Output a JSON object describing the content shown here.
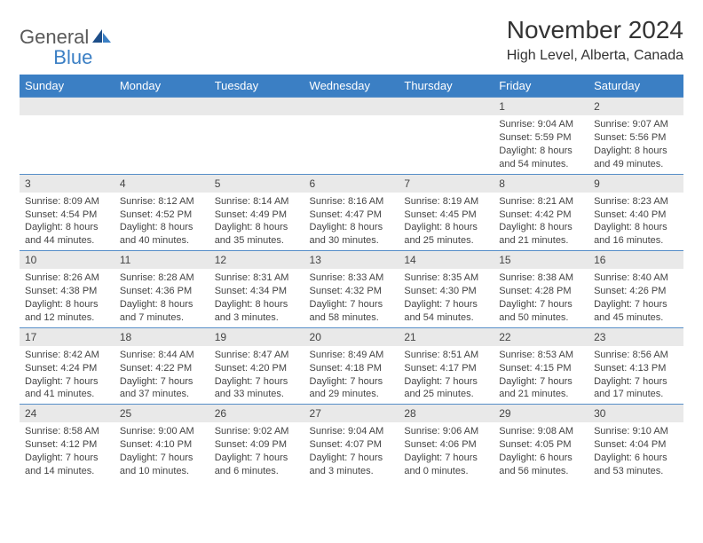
{
  "logo": {
    "word1": "General",
    "word2": "Blue"
  },
  "title": "November 2024",
  "location": "High Level, Alberta, Canada",
  "weekdays": [
    "Sunday",
    "Monday",
    "Tuesday",
    "Wednesday",
    "Thursday",
    "Friday",
    "Saturday"
  ],
  "colors": {
    "header_bg": "#3b7fc4",
    "header_text": "#ffffff",
    "daynum_bg": "#e9e9e9",
    "row_border": "#568ec8",
    "text": "#444444"
  },
  "grid": [
    [
      {
        "day": "",
        "sunrise": "",
        "sunset": "",
        "daylight1": "",
        "daylight2": ""
      },
      {
        "day": "",
        "sunrise": "",
        "sunset": "",
        "daylight1": "",
        "daylight2": ""
      },
      {
        "day": "",
        "sunrise": "",
        "sunset": "",
        "daylight1": "",
        "daylight2": ""
      },
      {
        "day": "",
        "sunrise": "",
        "sunset": "",
        "daylight1": "",
        "daylight2": ""
      },
      {
        "day": "",
        "sunrise": "",
        "sunset": "",
        "daylight1": "",
        "daylight2": ""
      },
      {
        "day": "1",
        "sunrise": "Sunrise: 9:04 AM",
        "sunset": "Sunset: 5:59 PM",
        "daylight1": "Daylight: 8 hours",
        "daylight2": "and 54 minutes."
      },
      {
        "day": "2",
        "sunrise": "Sunrise: 9:07 AM",
        "sunset": "Sunset: 5:56 PM",
        "daylight1": "Daylight: 8 hours",
        "daylight2": "and 49 minutes."
      }
    ],
    [
      {
        "day": "3",
        "sunrise": "Sunrise: 8:09 AM",
        "sunset": "Sunset: 4:54 PM",
        "daylight1": "Daylight: 8 hours",
        "daylight2": "and 44 minutes."
      },
      {
        "day": "4",
        "sunrise": "Sunrise: 8:12 AM",
        "sunset": "Sunset: 4:52 PM",
        "daylight1": "Daylight: 8 hours",
        "daylight2": "and 40 minutes."
      },
      {
        "day": "5",
        "sunrise": "Sunrise: 8:14 AM",
        "sunset": "Sunset: 4:49 PM",
        "daylight1": "Daylight: 8 hours",
        "daylight2": "and 35 minutes."
      },
      {
        "day": "6",
        "sunrise": "Sunrise: 8:16 AM",
        "sunset": "Sunset: 4:47 PM",
        "daylight1": "Daylight: 8 hours",
        "daylight2": "and 30 minutes."
      },
      {
        "day": "7",
        "sunrise": "Sunrise: 8:19 AM",
        "sunset": "Sunset: 4:45 PM",
        "daylight1": "Daylight: 8 hours",
        "daylight2": "and 25 minutes."
      },
      {
        "day": "8",
        "sunrise": "Sunrise: 8:21 AM",
        "sunset": "Sunset: 4:42 PM",
        "daylight1": "Daylight: 8 hours",
        "daylight2": "and 21 minutes."
      },
      {
        "day": "9",
        "sunrise": "Sunrise: 8:23 AM",
        "sunset": "Sunset: 4:40 PM",
        "daylight1": "Daylight: 8 hours",
        "daylight2": "and 16 minutes."
      }
    ],
    [
      {
        "day": "10",
        "sunrise": "Sunrise: 8:26 AM",
        "sunset": "Sunset: 4:38 PM",
        "daylight1": "Daylight: 8 hours",
        "daylight2": "and 12 minutes."
      },
      {
        "day": "11",
        "sunrise": "Sunrise: 8:28 AM",
        "sunset": "Sunset: 4:36 PM",
        "daylight1": "Daylight: 8 hours",
        "daylight2": "and 7 minutes."
      },
      {
        "day": "12",
        "sunrise": "Sunrise: 8:31 AM",
        "sunset": "Sunset: 4:34 PM",
        "daylight1": "Daylight: 8 hours",
        "daylight2": "and 3 minutes."
      },
      {
        "day": "13",
        "sunrise": "Sunrise: 8:33 AM",
        "sunset": "Sunset: 4:32 PM",
        "daylight1": "Daylight: 7 hours",
        "daylight2": "and 58 minutes."
      },
      {
        "day": "14",
        "sunrise": "Sunrise: 8:35 AM",
        "sunset": "Sunset: 4:30 PM",
        "daylight1": "Daylight: 7 hours",
        "daylight2": "and 54 minutes."
      },
      {
        "day": "15",
        "sunrise": "Sunrise: 8:38 AM",
        "sunset": "Sunset: 4:28 PM",
        "daylight1": "Daylight: 7 hours",
        "daylight2": "and 50 minutes."
      },
      {
        "day": "16",
        "sunrise": "Sunrise: 8:40 AM",
        "sunset": "Sunset: 4:26 PM",
        "daylight1": "Daylight: 7 hours",
        "daylight2": "and 45 minutes."
      }
    ],
    [
      {
        "day": "17",
        "sunrise": "Sunrise: 8:42 AM",
        "sunset": "Sunset: 4:24 PM",
        "daylight1": "Daylight: 7 hours",
        "daylight2": "and 41 minutes."
      },
      {
        "day": "18",
        "sunrise": "Sunrise: 8:44 AM",
        "sunset": "Sunset: 4:22 PM",
        "daylight1": "Daylight: 7 hours",
        "daylight2": "and 37 minutes."
      },
      {
        "day": "19",
        "sunrise": "Sunrise: 8:47 AM",
        "sunset": "Sunset: 4:20 PM",
        "daylight1": "Daylight: 7 hours",
        "daylight2": "and 33 minutes."
      },
      {
        "day": "20",
        "sunrise": "Sunrise: 8:49 AM",
        "sunset": "Sunset: 4:18 PM",
        "daylight1": "Daylight: 7 hours",
        "daylight2": "and 29 minutes."
      },
      {
        "day": "21",
        "sunrise": "Sunrise: 8:51 AM",
        "sunset": "Sunset: 4:17 PM",
        "daylight1": "Daylight: 7 hours",
        "daylight2": "and 25 minutes."
      },
      {
        "day": "22",
        "sunrise": "Sunrise: 8:53 AM",
        "sunset": "Sunset: 4:15 PM",
        "daylight1": "Daylight: 7 hours",
        "daylight2": "and 21 minutes."
      },
      {
        "day": "23",
        "sunrise": "Sunrise: 8:56 AM",
        "sunset": "Sunset: 4:13 PM",
        "daylight1": "Daylight: 7 hours",
        "daylight2": "and 17 minutes."
      }
    ],
    [
      {
        "day": "24",
        "sunrise": "Sunrise: 8:58 AM",
        "sunset": "Sunset: 4:12 PM",
        "daylight1": "Daylight: 7 hours",
        "daylight2": "and 14 minutes."
      },
      {
        "day": "25",
        "sunrise": "Sunrise: 9:00 AM",
        "sunset": "Sunset: 4:10 PM",
        "daylight1": "Daylight: 7 hours",
        "daylight2": "and 10 minutes."
      },
      {
        "day": "26",
        "sunrise": "Sunrise: 9:02 AM",
        "sunset": "Sunset: 4:09 PM",
        "daylight1": "Daylight: 7 hours",
        "daylight2": "and 6 minutes."
      },
      {
        "day": "27",
        "sunrise": "Sunrise: 9:04 AM",
        "sunset": "Sunset: 4:07 PM",
        "daylight1": "Daylight: 7 hours",
        "daylight2": "and 3 minutes."
      },
      {
        "day": "28",
        "sunrise": "Sunrise: 9:06 AM",
        "sunset": "Sunset: 4:06 PM",
        "daylight1": "Daylight: 7 hours",
        "daylight2": "and 0 minutes."
      },
      {
        "day": "29",
        "sunrise": "Sunrise: 9:08 AM",
        "sunset": "Sunset: 4:05 PM",
        "daylight1": "Daylight: 6 hours",
        "daylight2": "and 56 minutes."
      },
      {
        "day": "30",
        "sunrise": "Sunrise: 9:10 AM",
        "sunset": "Sunset: 4:04 PM",
        "daylight1": "Daylight: 6 hours",
        "daylight2": "and 53 minutes."
      }
    ]
  ]
}
